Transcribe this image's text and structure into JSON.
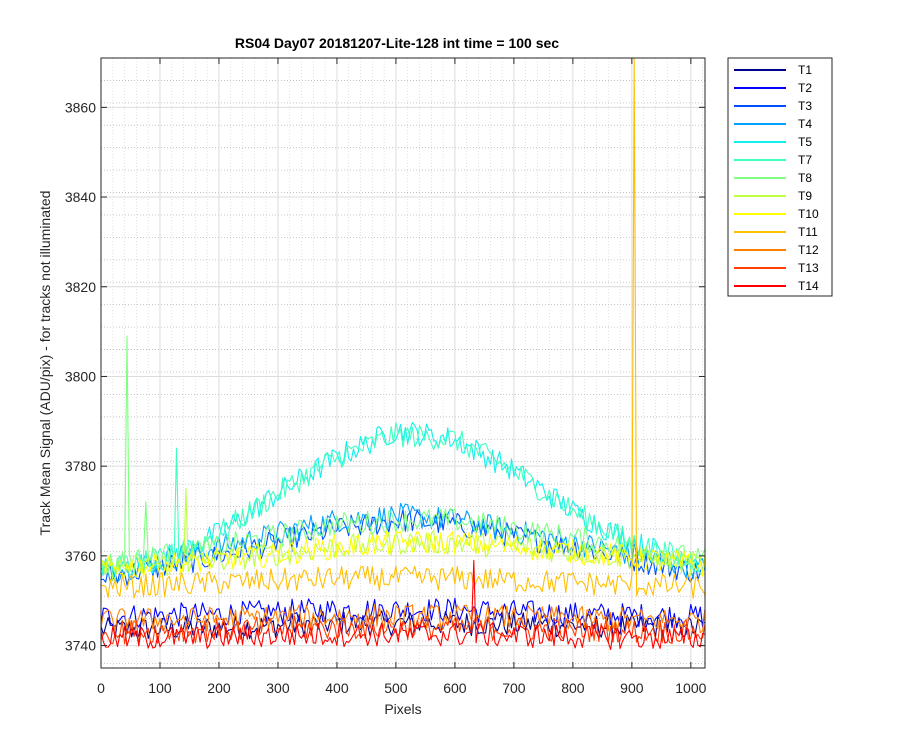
{
  "chart_data": {
    "type": "line",
    "title": "RS04 Day07 20181207-Lite-128 int time = 100 sec",
    "xlabel": "Pixels",
    "ylabel": "Track Mean Signal (ADU/pix) - for tracks not illuminated",
    "xlim": [
      0,
      1024
    ],
    "ylim": [
      3735,
      3871
    ],
    "x_ticks": [
      0,
      100,
      200,
      300,
      400,
      500,
      600,
      700,
      800,
      900,
      1000
    ],
    "y_ticks": [
      3740,
      3760,
      3780,
      3800,
      3820,
      3840,
      3860
    ],
    "grid": true,
    "minor_grid": true,
    "legend_position": "outside-top-right",
    "series": [
      {
        "name": "T1",
        "color": "#00008f",
        "values_at_x": {
          "x": [
            0,
            200,
            400,
            512,
            600,
            800,
            1024
          ],
          "y": [
            3743.5,
            3744,
            3745,
            3745,
            3745,
            3744.5,
            3744
          ]
        }
      },
      {
        "name": "T2",
        "color": "#0000ff",
        "values_at_x": {
          "x": [
            0,
            200,
            400,
            512,
            600,
            800,
            1024
          ],
          "y": [
            3746.5,
            3747,
            3748,
            3748,
            3748,
            3747,
            3746.5
          ]
        }
      },
      {
        "name": "T3",
        "color": "#0050ff",
        "values_at_x": {
          "x": [
            0,
            200,
            400,
            512,
            600,
            800,
            1024
          ],
          "y": [
            3755,
            3760,
            3766,
            3768,
            3767,
            3762,
            3756
          ]
        }
      },
      {
        "name": "T4",
        "color": "#00a0ff",
        "values_at_x": {
          "x": [
            0,
            200,
            400,
            512,
            600,
            800,
            1024
          ],
          "y": [
            3756,
            3762,
            3768,
            3769,
            3768,
            3763,
            3757
          ]
        }
      },
      {
        "name": "T5",
        "color": "#10f0ef",
        "values_at_x": {
          "x": [
            0,
            100,
            200,
            300,
            400,
            500,
            600,
            700,
            800,
            900,
            1024
          ],
          "y": [
            3757,
            3759,
            3765,
            3774,
            3782,
            3788,
            3786,
            3779,
            3770,
            3763,
            3758
          ]
        }
      },
      {
        "name": "T7",
        "color": "#40ffbf",
        "values_at_x": {
          "x": [
            0,
            100,
            200,
            300,
            400,
            500,
            600,
            700,
            800,
            900,
            1024
          ],
          "y": [
            3757,
            3759,
            3765,
            3774,
            3782,
            3787,
            3786,
            3779,
            3770,
            3763,
            3758
          ]
        }
      },
      {
        "name": "T8",
        "color": "#80ff80",
        "values_at_x": {
          "x": [
            0,
            200,
            400,
            512,
            600,
            800,
            1024
          ],
          "y": [
            3758,
            3762,
            3767,
            3768,
            3768,
            3764,
            3759
          ]
        }
      },
      {
        "name": "T9",
        "color": "#bfff40",
        "values_at_x": {
          "x": [
            0,
            200,
            400,
            512,
            600,
            800,
            1024
          ],
          "y": [
            3757,
            3759,
            3762,
            3763,
            3763,
            3761,
            3758
          ]
        }
      },
      {
        "name": "T10",
        "color": "#ffff00",
        "values_at_x": {
          "x": [
            0,
            200,
            400,
            512,
            600,
            800,
            1024
          ],
          "y": [
            3757,
            3759,
            3762,
            3763,
            3763,
            3761,
            3758
          ]
        }
      },
      {
        "name": "T11",
        "color": "#ffbf00",
        "values_at_x": {
          "x": [
            0,
            200,
            400,
            512,
            600,
            800,
            1024
          ],
          "y": [
            3753,
            3754,
            3755,
            3755,
            3755,
            3754,
            3753
          ]
        }
      },
      {
        "name": "T12",
        "color": "#ff8000",
        "values_at_x": {
          "x": [
            0,
            200,
            400,
            512,
            600,
            800,
            1024
          ],
          "y": [
            3745.5,
            3746,
            3746.5,
            3746.5,
            3746.5,
            3746,
            3745.5
          ]
        }
      },
      {
        "name": "T13",
        "color": "#ff4000",
        "values_at_x": {
          "x": [
            0,
            200,
            400,
            512,
            600,
            800,
            1024
          ],
          "y": [
            3743,
            3743.5,
            3744,
            3744,
            3744,
            3743.5,
            3743
          ]
        }
      },
      {
        "name": "T14",
        "color": "#ff0000",
        "values_at_x": {
          "x": [
            0,
            200,
            400,
            512,
            600,
            800,
            1024
          ],
          "y": [
            3741.5,
            3742,
            3742.5,
            3742.5,
            3742.5,
            3742,
            3741.5
          ]
        }
      }
    ],
    "annotations": [
      {
        "series": "T8",
        "type": "spike",
        "x": 44,
        "y": 3809
      },
      {
        "series": "T8",
        "type": "spike",
        "x": 77,
        "y": 3772
      },
      {
        "series": "T7",
        "type": "spike",
        "x": 127,
        "y": 3784
      },
      {
        "series": "T9",
        "type": "spike",
        "x": 145,
        "y": 3775
      },
      {
        "series": "T11",
        "type": "spike",
        "x": 905,
        "y": 3871
      },
      {
        "series": "T14",
        "type": "spike",
        "x": 632,
        "y": 3759
      }
    ]
  }
}
